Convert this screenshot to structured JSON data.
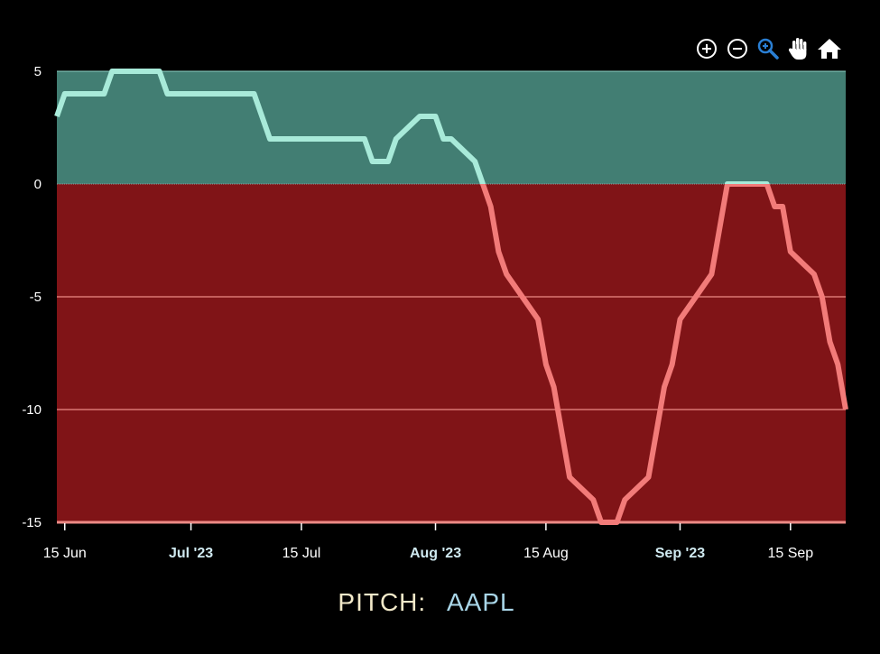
{
  "toolbar": {
    "icons": [
      "zoom-in-icon",
      "zoom-out-icon",
      "magnify-icon",
      "pan-hand-icon",
      "home-icon"
    ],
    "active_color": "#2a7fd4",
    "icon_color": "#ffffff"
  },
  "caption": {
    "label": "PITCH:",
    "symbol": "AAPL"
  },
  "chart_data": {
    "type": "line",
    "title": "",
    "xlabel": "",
    "ylabel": "",
    "xlim": [
      "2023-06-14",
      "2023-09-22"
    ],
    "ylim": [
      -15,
      5
    ],
    "y_ticks": [
      5,
      0,
      -5,
      -10,
      -15
    ],
    "y_tick_labels": [
      "5",
      "0",
      "-5",
      "-10",
      "-15"
    ],
    "x_ticks": [
      {
        "date": "2023-06-15",
        "label": "15 Jun",
        "major": false
      },
      {
        "date": "2023-07-01",
        "label": "Jul '23",
        "major": true
      },
      {
        "date": "2023-07-15",
        "label": "15 Jul",
        "major": false
      },
      {
        "date": "2023-08-01",
        "label": "Aug '23",
        "major": true
      },
      {
        "date": "2023-08-15",
        "label": "15 Aug",
        "major": false
      },
      {
        "date": "2023-09-01",
        "label": "Sep '23",
        "major": true
      },
      {
        "date": "2023-09-15",
        "label": "15 Sep",
        "major": false
      }
    ],
    "zones": [
      {
        "from": 0,
        "to": 5,
        "color": "#427e73"
      },
      {
        "from": -15,
        "to": 0,
        "color": "#801417"
      }
    ],
    "gridlines": [
      -5,
      -10
    ],
    "grid_color": "#ec8a86",
    "series": [
      {
        "positive_color": "#a8ead9",
        "negative_color": "#f27b79",
        "points": [
          [
            "2023-06-14",
            3
          ],
          [
            "2023-06-15",
            4
          ],
          [
            "2023-06-20",
            4
          ],
          [
            "2023-06-21",
            5
          ],
          [
            "2023-06-27",
            5
          ],
          [
            "2023-06-28",
            4
          ],
          [
            "2023-07-09",
            4
          ],
          [
            "2023-07-11",
            2
          ],
          [
            "2023-07-23",
            2
          ],
          [
            "2023-07-24",
            1
          ],
          [
            "2023-07-26",
            1
          ],
          [
            "2023-07-27",
            2
          ],
          [
            "2023-07-30",
            3
          ],
          [
            "2023-08-01",
            3
          ],
          [
            "2023-08-02",
            2
          ],
          [
            "2023-08-03",
            2
          ],
          [
            "2023-08-06",
            1
          ],
          [
            "2023-08-07",
            0
          ],
          [
            "2023-08-08",
            -1
          ],
          [
            "2023-08-09",
            -3
          ],
          [
            "2023-08-10",
            -4
          ],
          [
            "2023-08-14",
            -6
          ],
          [
            "2023-08-15",
            -8
          ],
          [
            "2023-08-16",
            -9
          ],
          [
            "2023-08-18",
            -13
          ],
          [
            "2023-08-21",
            -14
          ],
          [
            "2023-08-22",
            -15
          ],
          [
            "2023-08-24",
            -15
          ],
          [
            "2023-08-25",
            -14
          ],
          [
            "2023-08-28",
            -13
          ],
          [
            "2023-08-30",
            -9
          ],
          [
            "2023-08-31",
            -8
          ],
          [
            "2023-09-01",
            -6
          ],
          [
            "2023-09-05",
            -4
          ],
          [
            "2023-09-07",
            0
          ],
          [
            "2023-09-12",
            0
          ],
          [
            "2023-09-13",
            -1
          ],
          [
            "2023-09-14",
            -1
          ],
          [
            "2023-09-15",
            -3
          ],
          [
            "2023-09-18",
            -4
          ],
          [
            "2023-09-19",
            -5
          ],
          [
            "2023-09-20",
            -7
          ],
          [
            "2023-09-21",
            -8
          ],
          [
            "2023-09-22",
            -10
          ]
        ]
      }
    ]
  }
}
